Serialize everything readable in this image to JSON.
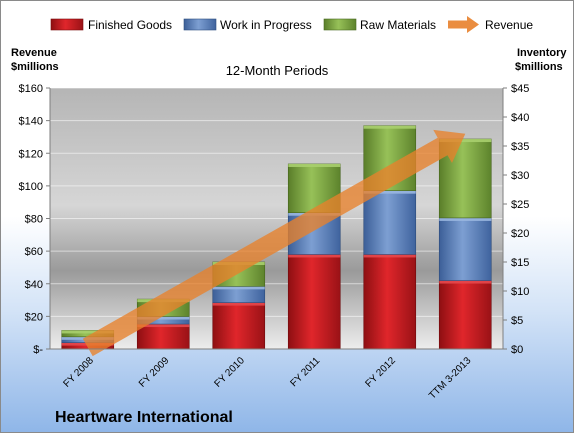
{
  "chart_data": {
    "type": "bar",
    "title": "12-Month Periods",
    "company": "Heartware International",
    "ylabel_left": [
      "Revenue",
      "$millions"
    ],
    "ylabel_right": [
      "Inventory",
      "$millions"
    ],
    "categories": [
      "FY 2008",
      "FY 2009",
      "FY 2010",
      "FY 2011",
      "FY 2012",
      "TTM 3-2013"
    ],
    "left_ticks": [
      "$-",
      "$20",
      "$40",
      "$60",
      "$80",
      "$100",
      "$120",
      "$140",
      "$160"
    ],
    "right_ticks": [
      "$0",
      "$5",
      "$10",
      "$15",
      "$20",
      "$25",
      "$30",
      "$35",
      "$40",
      "$45"
    ],
    "ylim_left": [
      0,
      160
    ],
    "ylim_right": [
      0,
      45
    ],
    "legend_placement": "top",
    "series": [
      {
        "name": "Finished Goods",
        "axis": "right",
        "type": "stacked-bar",
        "color": "#c0191f",
        "values": [
          1.1,
          4.3,
          8.0,
          16.3,
          16.3,
          11.8
        ]
      },
      {
        "name": "Work in Progress",
        "axis": "right",
        "type": "stacked-bar",
        "color": "#4f76b5",
        "values": [
          1.0,
          1.3,
          2.8,
          7.2,
          11.0,
          10.8
        ]
      },
      {
        "name": "Raw Materials",
        "axis": "right",
        "type": "stacked-bar",
        "color": "#77a23a",
        "values": [
          1.1,
          3.0,
          4.2,
          8.4,
          11.2,
          13.6
        ]
      },
      {
        "name": "Revenue",
        "axis": "left",
        "type": "line-arrow",
        "color": "#e8812b",
        "values": [
          1,
          14,
          42,
          78,
          112,
          132
        ]
      }
    ]
  }
}
